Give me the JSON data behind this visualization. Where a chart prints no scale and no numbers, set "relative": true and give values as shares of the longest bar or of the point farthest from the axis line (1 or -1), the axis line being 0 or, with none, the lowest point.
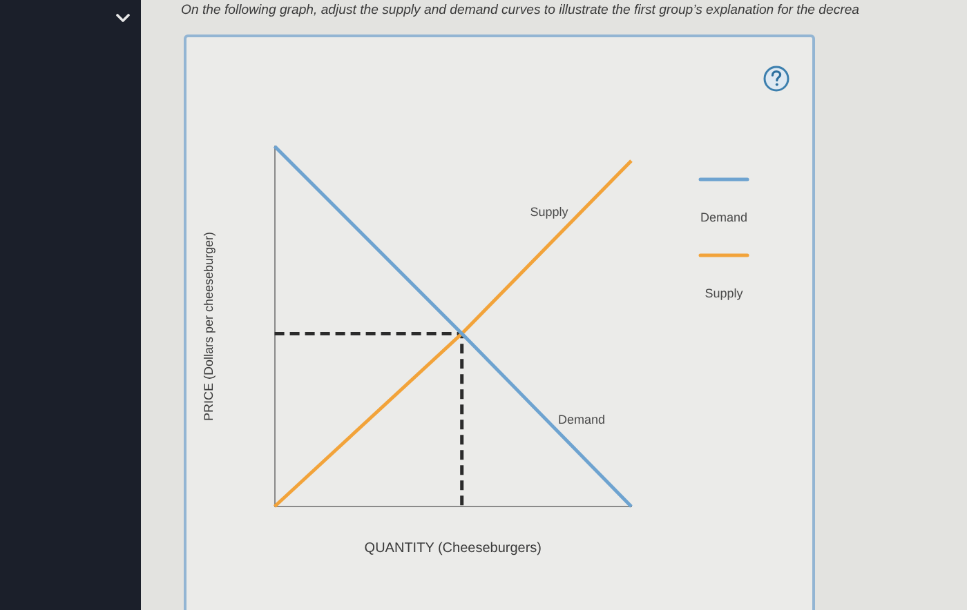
{
  "chart_data": {
    "type": "line",
    "relative": true,
    "title": "On the following graph, adjust the supply and demand curves to illustrate the first group’s explanation for the decrea",
    "xlabel": "QUANTITY (Cheeseburgers)",
    "ylabel": "PRICE (Dollars per cheeseburger)",
    "legend": "right",
    "categories": [
      null,
      null,
      null,
      null,
      null,
      null,
      null,
      null,
      null,
      null,
      null,
      null,
      null,
      null,
      null,
      null,
      null,
      null,
      null,
      null,
      null,
      null,
      null,
      null,
      null,
      null,
      null,
      null,
      null,
      null,
      null,
      null,
      null,
      null,
      null,
      null,
      null,
      null,
      null,
      null,
      null
    ],
    "series": [
      {
        "name": "Demand",
        "color": "#6ea3d0",
        "values": [
          1,
          null,
          null,
          null,
          null,
          null,
          null,
          null,
          null,
          null,
          null,
          null,
          null,
          null,
          null,
          null,
          null,
          null,
          null,
          null,
          null,
          0.48,
          null,
          null,
          null,
          null,
          null,
          null,
          null,
          null,
          null,
          null,
          null,
          null,
          null,
          null,
          null,
          null,
          null,
          null,
          0
        ]
      },
      {
        "name": "Supply",
        "color": "#f2a33a",
        "values": [
          0,
          null,
          null,
          null,
          null,
          null,
          null,
          null,
          null,
          null,
          null,
          null,
          null,
          null,
          null,
          null,
          null,
          null,
          null,
          null,
          null,
          0.48,
          null,
          null,
          null,
          null,
          null,
          null,
          null,
          null,
          null,
          null,
          null,
          null,
          null,
          null,
          null,
          null,
          null,
          null,
          0.96
        ]
      },
      {
        "type": "step",
        "color": "#2b2b2b",
        "line_style": "dashed",
        "values": [
          0.48,
          null,
          null,
          null,
          null,
          null,
          null,
          null,
          null,
          null,
          null,
          null,
          null,
          null,
          null,
          null,
          null,
          null,
          null,
          null,
          null,
          0,
          null,
          null,
          null,
          null,
          null,
          null,
          null,
          null,
          null,
          null,
          null,
          null,
          null,
          null,
          null,
          null,
          null,
          null,
          null
        ]
      }
    ]
  }
}
